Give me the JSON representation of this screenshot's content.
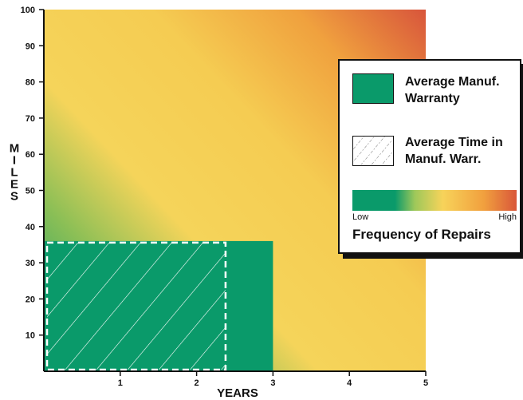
{
  "chart_data": {
    "type": "area",
    "xlabel": "YEARS",
    "ylabel": "MILES",
    "xlim": [
      0,
      5
    ],
    "ylim": [
      0,
      100
    ],
    "x_ticks": [
      "1",
      "2",
      "3",
      "4",
      "5"
    ],
    "y_ticks": [
      "10",
      "20",
      "30",
      "40",
      "50",
      "60",
      "70",
      "80",
      "90",
      "100"
    ],
    "background": "gradient",
    "regions": [
      {
        "name": "Average Manuf. Warranty",
        "x": [
          0,
          3
        ],
        "y": [
          0,
          36
        ],
        "fill": "#0a9a6a"
      },
      {
        "name": "Average Time in Manuf. Warr.",
        "x": [
          0,
          2.4
        ],
        "y": [
          0,
          36
        ],
        "fill": "hatch"
      }
    ],
    "legend": {
      "position": "right",
      "items": [
        "Average Manuf. Warranty",
        "Average Time in Manuf. Warr."
      ],
      "scale_low": "Low",
      "scale_high": "High",
      "scale_title": "Frequency of Repairs"
    }
  },
  "colors": {
    "low": "#0a9a6a",
    "mid": "#f7d35a",
    "high": "#d9573a"
  }
}
